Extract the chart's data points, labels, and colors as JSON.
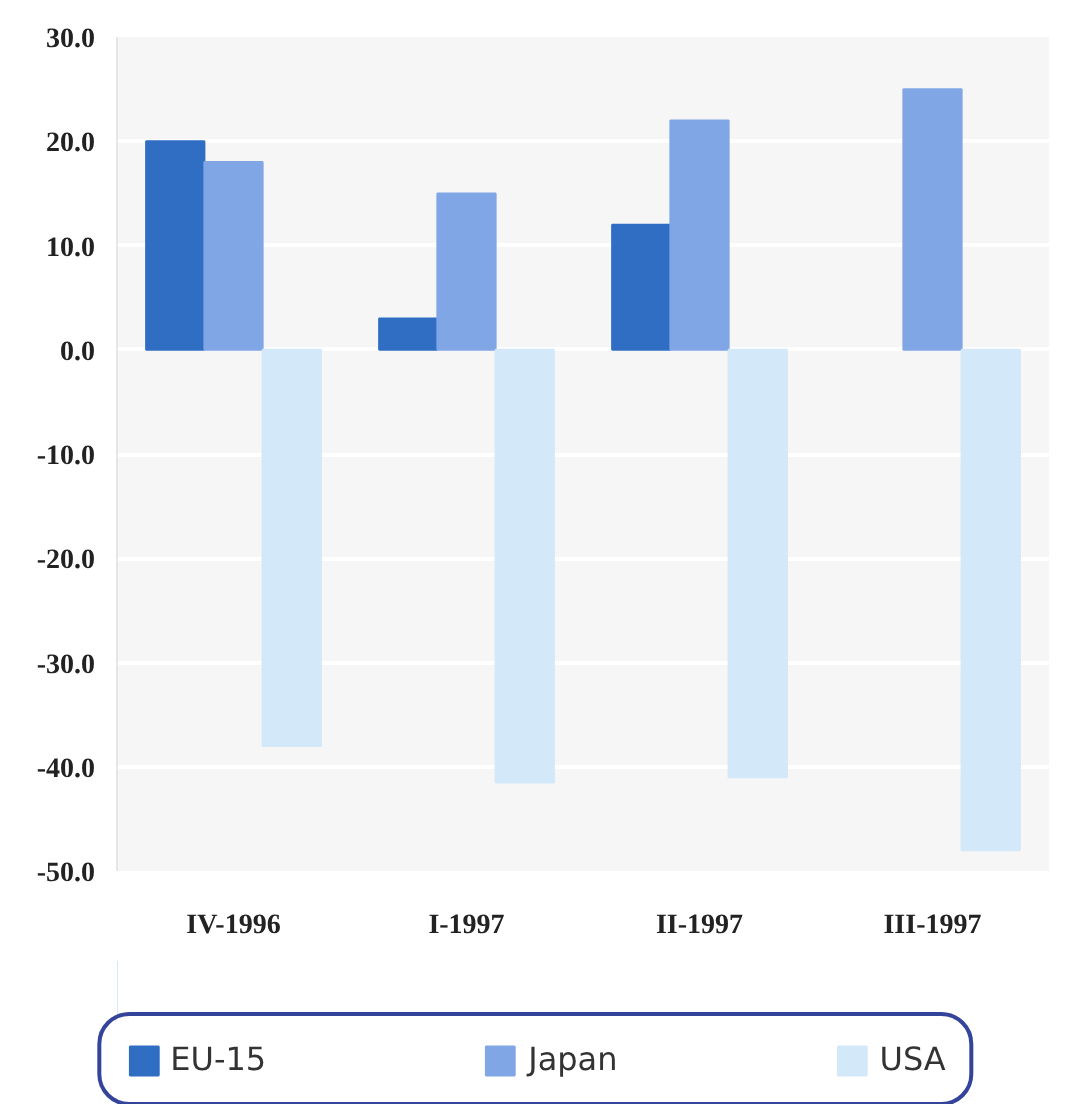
{
  "chart_data": {
    "type": "bar",
    "categories": [
      "IV-1996",
      "I-1997",
      "II-1997",
      "III-1997"
    ],
    "series": [
      {
        "name": "EU-15",
        "color": "#2f6ec3",
        "values": [
          20,
          3,
          12,
          null
        ]
      },
      {
        "name": "Japan",
        "color": "#80a6e6",
        "values": [
          18,
          15,
          22,
          25
        ]
      },
      {
        "name": "USA",
        "color": "#d3e8f8",
        "values": [
          -38,
          -41.5,
          -41,
          -48
        ]
      }
    ],
    "ylim": [
      -50,
      30
    ],
    "yticks": [
      {
        "value": 30,
        "label": "30.0"
      },
      {
        "value": 20,
        "label": "20.0"
      },
      {
        "value": 10,
        "label": "10.0"
      },
      {
        "value": 0,
        "label": "0.0"
      },
      {
        "value": -10,
        "label": "-10.0"
      },
      {
        "value": -20,
        "label": "-20.0"
      },
      {
        "value": -30,
        "label": "-30.0"
      },
      {
        "value": -40,
        "label": "-40.0"
      },
      {
        "value": -50,
        "label": "-50.0"
      }
    ],
    "grid": "y",
    "legend": "bottom"
  }
}
